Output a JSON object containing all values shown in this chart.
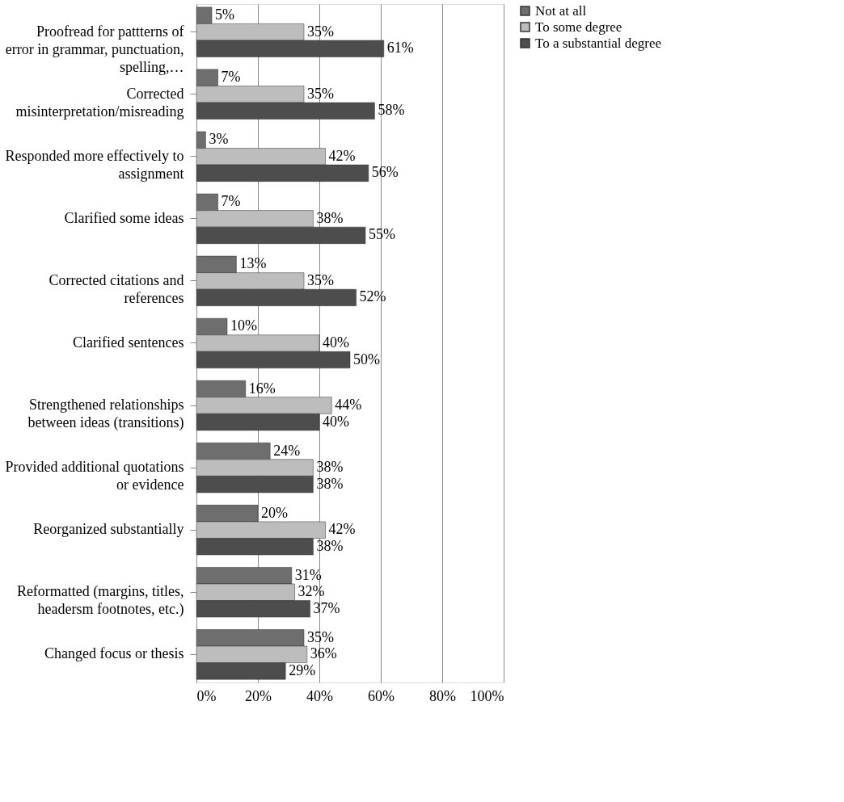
{
  "chart_data": {
    "type": "bar",
    "orientation": "horizontal",
    "categories": [
      "Proofread for pattterns of error in grammar, punctuation, spelling,…",
      "Corrected misinterpretation/misreading",
      "Responded more effectively to assignment",
      "Clarified some ideas",
      "Corrected citations and references",
      "Clarified sentences",
      "Strengthened relationships between ideas (transitions)",
      "Provided additional quotations or evidence",
      "Reorganized substantially",
      "Reformatted (margins, titles, headersm footnotes, etc.)",
      "Changed focus or thesis"
    ],
    "series": [
      {
        "name": "Not at all",
        "color": "#6e6e6e",
        "values": [
          5,
          7,
          3,
          7,
          13,
          10,
          16,
          24,
          20,
          31,
          35
        ],
        "value_labels": [
          "5%",
          "7%",
          "3%",
          "7%",
          "13%",
          "10%",
          "16%",
          "24%",
          "20%",
          "31%",
          "35%"
        ]
      },
      {
        "name": "To some degree",
        "color": "#bdbdbd",
        "values": [
          35,
          35,
          42,
          38,
          35,
          40,
          44,
          38,
          42,
          32,
          36
        ],
        "value_labels": [
          "35%",
          "35%",
          "42%",
          "38%",
          "35%",
          "40%",
          "44%",
          "38%",
          "42%",
          "32%",
          "36%"
        ]
      },
      {
        "name": "To a substantial degree",
        "color": "#4d4d4d",
        "values": [
          61,
          58,
          56,
          55,
          52,
          50,
          40,
          38,
          38,
          37,
          29
        ],
        "value_labels": [
          "61%",
          "58%",
          "56%",
          "55%",
          "52%",
          "50%",
          "40%",
          "38%",
          "38%",
          "37%",
          "29%"
        ]
      }
    ],
    "xlim": [
      0,
      100
    ],
    "xticks": [
      {
        "value": 0,
        "label": "0%"
      },
      {
        "value": 20,
        "label": "20%"
      },
      {
        "value": 40,
        "label": "40%"
      },
      {
        "value": 60,
        "label": "60%"
      },
      {
        "value": 80,
        "label": "80%"
      },
      {
        "value": 100,
        "label": "100%"
      }
    ],
    "grid": "x",
    "legend": "right"
  }
}
